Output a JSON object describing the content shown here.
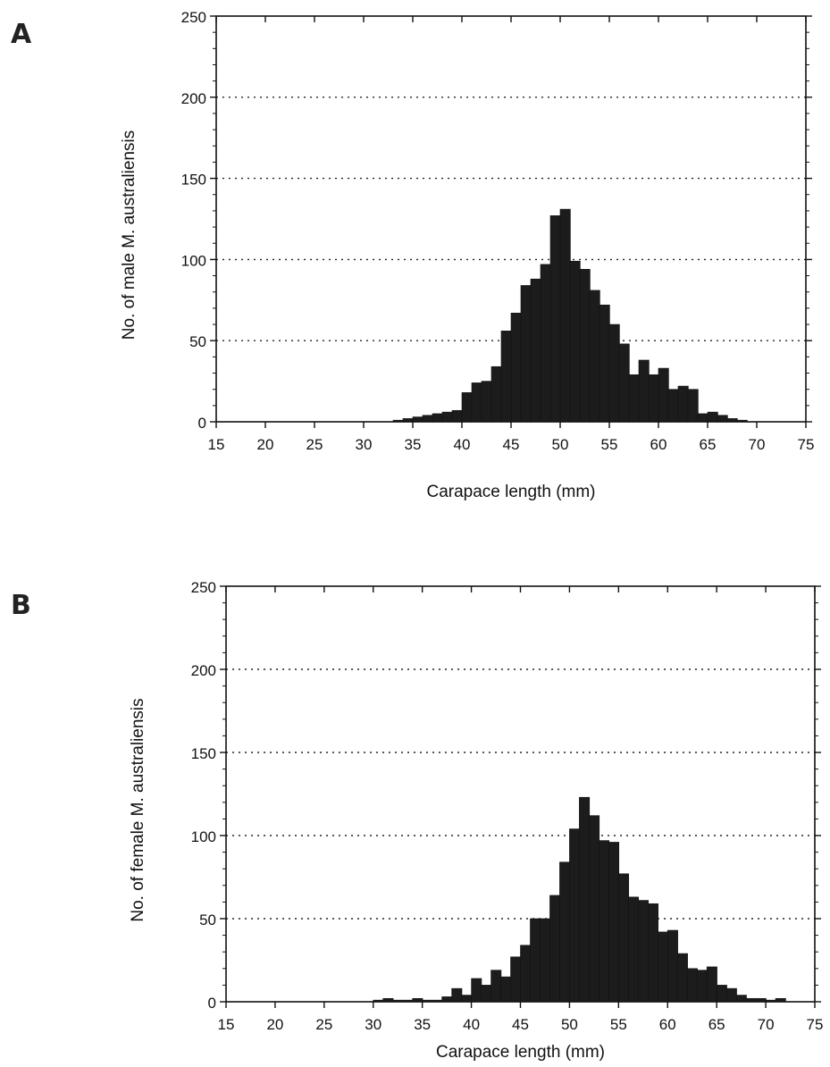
{
  "chart_data": [
    {
      "panel_label": "A",
      "type": "bar",
      "xlabel": "Carapace length (mm)",
      "ylabel": "No. of male M. australiensis",
      "xlim": [
        15,
        75
      ],
      "ylim": [
        0,
        250
      ],
      "xticks": [
        15,
        20,
        25,
        30,
        35,
        40,
        45,
        50,
        55,
        60,
        65,
        70,
        75
      ],
      "yticks": [
        0,
        50,
        100,
        150,
        200,
        250
      ],
      "bin_width": 1,
      "grid": "horizontal dotted",
      "bar_color": "#1c1c1c",
      "x": [
        32,
        33,
        34,
        35,
        36,
        37,
        38,
        39,
        40,
        41,
        42,
        43,
        44,
        45,
        46,
        47,
        48,
        49,
        50,
        51,
        52,
        53,
        54,
        55,
        56,
        57,
        58,
        59,
        60,
        61,
        62,
        63,
        64,
        65,
        66,
        67,
        68,
        69
      ],
      "values": [
        0,
        1,
        2,
        3,
        4,
        5,
        6,
        7,
        18,
        24,
        25,
        34,
        56,
        67,
        84,
        88,
        97,
        127,
        131,
        99,
        94,
        81,
        72,
        60,
        48,
        29,
        38,
        29,
        33,
        20,
        22,
        20,
        5,
        6,
        4,
        2,
        1,
        0
      ]
    },
    {
      "panel_label": "B",
      "type": "bar",
      "xlabel": "Carapace length (mm)",
      "ylabel": "No. of female M. australiensis",
      "xlim": [
        15,
        75
      ],
      "ylim": [
        0,
        250
      ],
      "xticks": [
        15,
        20,
        25,
        30,
        35,
        40,
        45,
        50,
        55,
        60,
        65,
        70,
        75
      ],
      "yticks": [
        0,
        50,
        100,
        150,
        200,
        250
      ],
      "bin_width": 1,
      "grid": "horizontal dotted",
      "bar_color": "#1c1c1c",
      "x": [
        29,
        30,
        31,
        32,
        33,
        34,
        35,
        36,
        37,
        38,
        39,
        40,
        41,
        42,
        43,
        44,
        45,
        46,
        47,
        48,
        49,
        50,
        51,
        52,
        53,
        54,
        55,
        56,
        57,
        58,
        59,
        60,
        61,
        62,
        63,
        64,
        65,
        66,
        67,
        68,
        69,
        70,
        71
      ],
      "values": [
        0,
        1,
        2,
        1,
        1,
        2,
        1,
        1,
        3,
        8,
        4,
        14,
        10,
        19,
        15,
        27,
        34,
        50,
        50,
        64,
        84,
        104,
        123,
        112,
        97,
        96,
        77,
        63,
        61,
        59,
        42,
        43,
        29,
        20,
        19,
        21,
        10,
        8,
        4,
        2,
        2,
        1,
        2
      ]
    }
  ]
}
